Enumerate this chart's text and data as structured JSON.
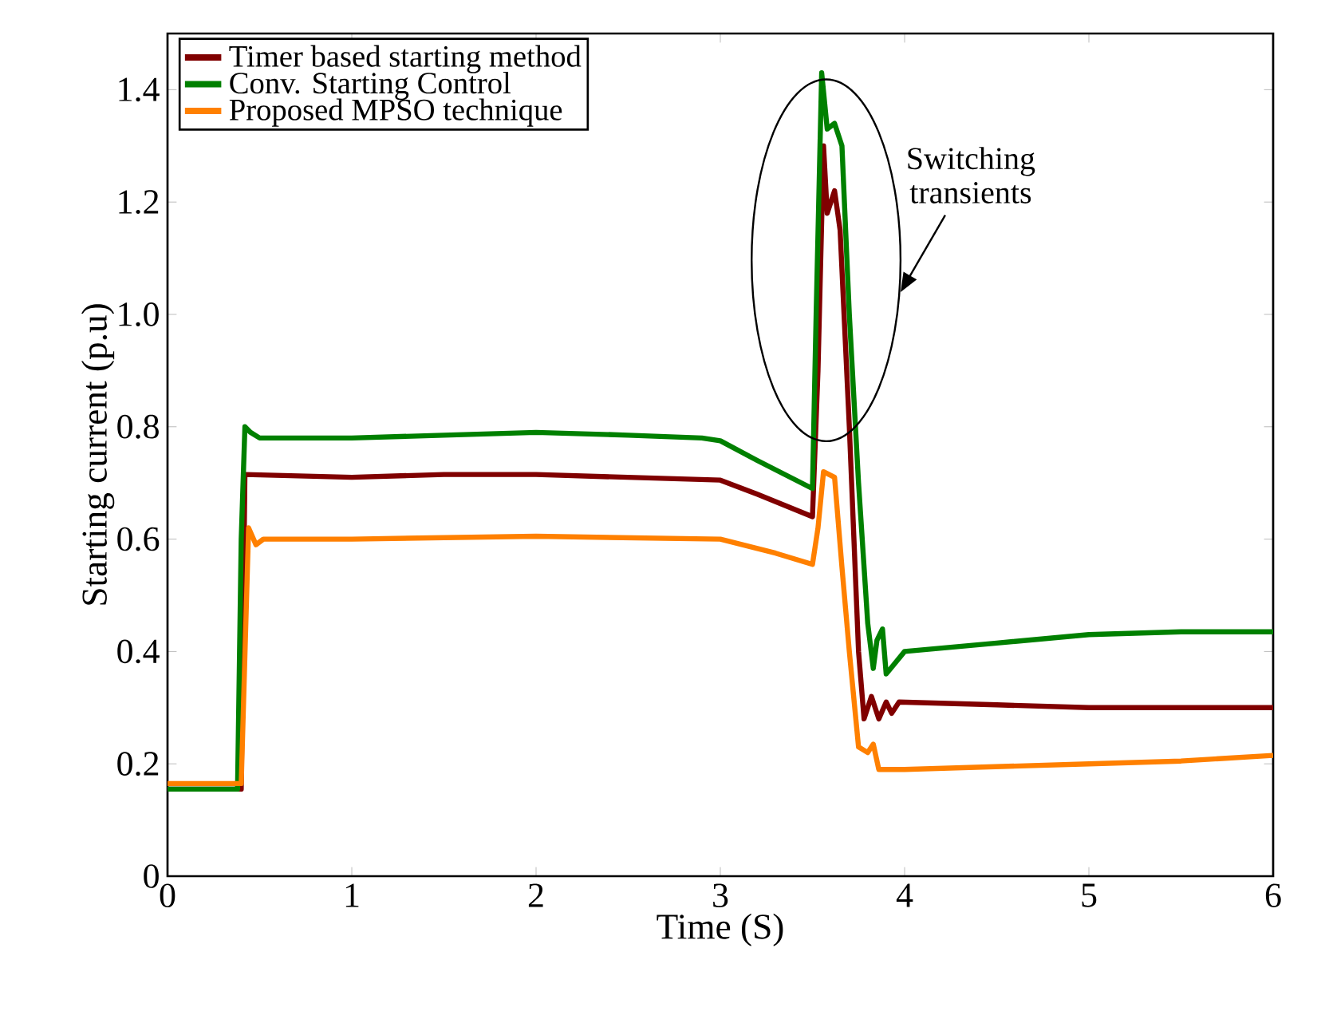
{
  "chart_data": {
    "type": "line",
    "xlabel": "Time (S)",
    "ylabel": "Starting current (p.u)",
    "annotations": [
      "Switching transients"
    ],
    "xlim": [
      0,
      6
    ],
    "ylim": [
      0,
      1.5
    ],
    "xticks": [
      0,
      1,
      2,
      3,
      4,
      5,
      6
    ],
    "yticks": [
      0,
      0.2,
      0.4,
      0.6,
      0.8,
      {
        "value": 1,
        "label": "1.0"
      },
      1.2,
      1.4
    ],
    "grid": false,
    "legend": "top left",
    "marker": "none",
    "line_style": "solid",
    "series": [
      {
        "name": "Timer based starting method",
        "color": "#800000",
        "x": [
          0,
          0.4,
          0.42,
          1,
          1.5,
          2,
          2.5,
          3,
          3.2,
          3.5,
          3.53,
          3.56,
          3.58,
          3.62,
          3.65,
          3.7,
          3.75,
          3.78,
          3.82,
          3.86,
          3.9,
          3.93,
          3.97,
          4.5,
          5,
          6
        ],
        "values": [
          0.155,
          0.155,
          0.715,
          0.71,
          0.715,
          0.715,
          0.71,
          0.705,
          0.68,
          0.64,
          0.9,
          1.3,
          1.18,
          1.22,
          1.15,
          0.8,
          0.4,
          0.28,
          0.32,
          0.28,
          0.31,
          0.29,
          0.31,
          0.305,
          0.3,
          0.3
        ]
      },
      {
        "name": "Conv. Starting Control",
        "color": "#008000",
        "x": [
          0,
          0.38,
          0.4,
          0.42,
          0.45,
          0.5,
          1,
          1.5,
          2,
          2.5,
          2.9,
          3,
          3.2,
          3.5,
          3.52,
          3.55,
          3.58,
          3.62,
          3.66,
          3.7,
          3.75,
          3.8,
          3.83,
          3.85,
          3.88,
          3.9,
          3.95,
          4,
          4.5,
          5,
          5.5,
          6
        ],
        "values": [
          0.155,
          0.155,
          0.6,
          0.8,
          0.79,
          0.78,
          0.78,
          0.785,
          0.79,
          0.785,
          0.78,
          0.775,
          0.74,
          0.69,
          1.0,
          1.43,
          1.33,
          1.34,
          1.3,
          1.0,
          0.7,
          0.45,
          0.37,
          0.42,
          0.44,
          0.36,
          0.38,
          0.4,
          0.415,
          0.43,
          0.435,
          0.435
        ]
      },
      {
        "name": "Proposed MPSO technique",
        "color": "#ff8000",
        "x": [
          0,
          0.4,
          0.44,
          0.48,
          0.52,
          1,
          2,
          3,
          3.3,
          3.5,
          3.53,
          3.56,
          3.62,
          3.66,
          3.7,
          3.75,
          3.8,
          3.83,
          3.86,
          4,
          5,
          5.5,
          6
        ],
        "values": [
          0.165,
          0.165,
          0.62,
          0.59,
          0.6,
          0.6,
          0.605,
          0.6,
          0.575,
          0.555,
          0.62,
          0.72,
          0.71,
          0.55,
          0.4,
          0.23,
          0.22,
          0.235,
          0.19,
          0.19,
          0.2,
          0.205,
          0.215
        ]
      }
    ]
  }
}
